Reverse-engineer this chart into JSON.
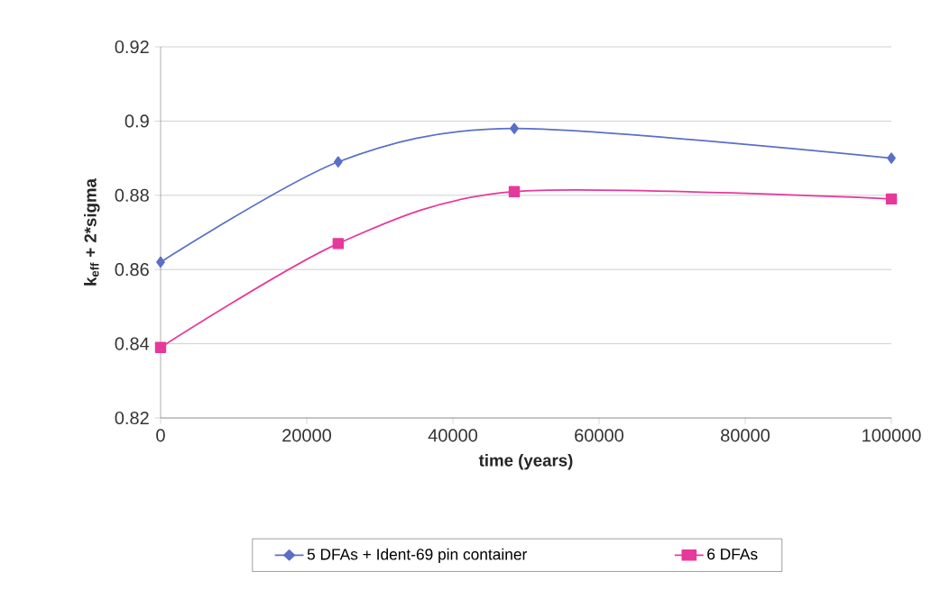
{
  "chart_data": {
    "type": "line",
    "xlabel": "time (years)",
    "ylabel": "k$_{eff}$ + 2*sigma",
    "x": [
      0,
      24300,
      48400,
      100000
    ],
    "series": [
      {
        "name": "5 DFAs + Ident-69 pin container",
        "color": "#5a6fc8",
        "marker": "diamond",
        "values": [
          0.862,
          0.889,
          0.898,
          0.89
        ]
      },
      {
        "name": "6 DFAs",
        "color": "#e6399b",
        "marker": "square",
        "values": [
          0.839,
          0.867,
          0.881,
          0.879
        ]
      }
    ],
    "xlim": [
      0,
      100000
    ],
    "xticks": [
      0,
      20000,
      40000,
      60000,
      80000,
      100000
    ],
    "ylim": [
      0.82,
      0.92
    ],
    "yticks": [
      0.82,
      0.84,
      0.86,
      0.88,
      0.9,
      0.92
    ],
    "grid": "y",
    "legend": "bottom",
    "line_style": "solid"
  }
}
